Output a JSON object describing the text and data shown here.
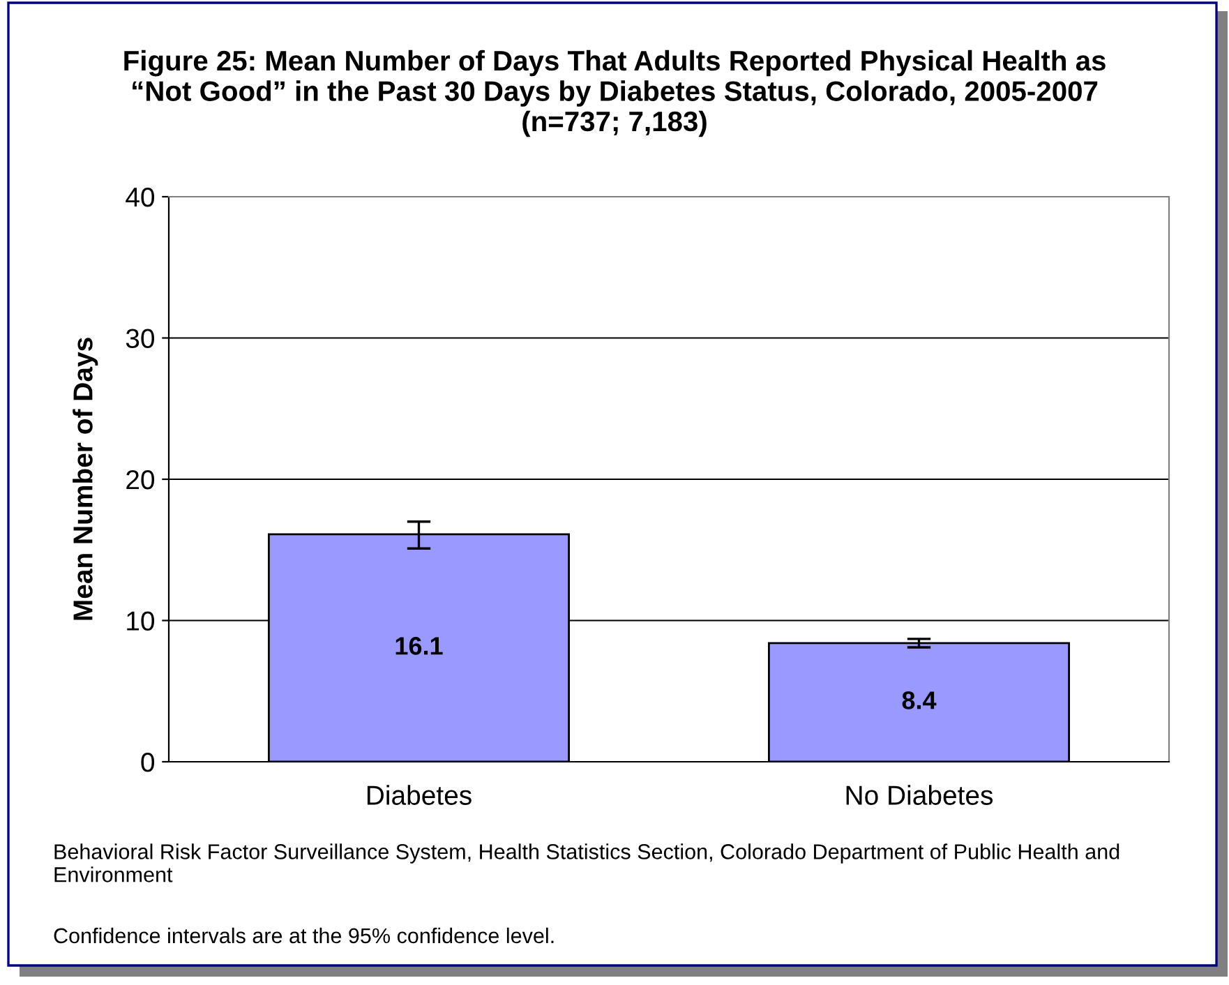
{
  "chart_data": {
    "type": "bar",
    "title": "Figure 25: Mean Number of Days That Adults Reported Physical Health as “Not Good” in the Past 30 Days by Diabetes Status, Colorado, 2005-2007 (n=737; 7,183)",
    "ylabel": "Mean Number of Days",
    "categories": [
      "Diabetes",
      "No Diabetes"
    ],
    "values": [
      16.1,
      8.4
    ],
    "errors": [
      [
        15.1,
        17.0
      ],
      [
        8.1,
        8.7
      ]
    ],
    "color": "#9999ff",
    "data_labels": true,
    "ylim": [
      0,
      40
    ],
    "yticks": [
      0,
      10,
      20,
      30,
      40
    ],
    "grid": "y",
    "annotations": [
      "Behavioral Risk Factor Surveillance System, Health Statistics Section, Colorado Department of Public Health and Environment",
      "Confidence intervals are at the 95% confidence level."
    ]
  }
}
